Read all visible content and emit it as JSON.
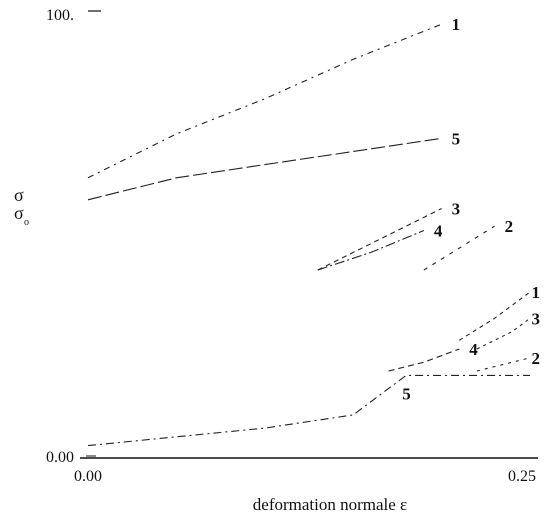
{
  "chart_data": {
    "type": "line",
    "title": "",
    "xlabel": "deformation normale ε",
    "ylabel_top": "σ",
    "ylabel_bottom": "σ",
    "ylabel_subscript": "o",
    "xlim": [
      0,
      0.25
    ],
    "ylim": [
      0,
      100
    ],
    "x_ticks": [
      {
        "value": 0,
        "label": "0.00"
      },
      {
        "value": 0.25,
        "label": "0.25"
      }
    ],
    "y_ticks": [
      {
        "value": 0,
        "label": "0.00"
      },
      {
        "value": 100,
        "label": "100."
      }
    ],
    "grid": false,
    "series": [
      {
        "name": "1",
        "x": [
          0.0,
          0.05,
          0.1,
          0.15,
          0.2
        ],
        "y": [
          62,
          72,
          80,
          89,
          97
        ]
      },
      {
        "name": "5",
        "x": [
          0.0,
          0.05,
          0.1,
          0.15,
          0.2
        ],
        "y": [
          57,
          62,
          65,
          68,
          71
        ]
      },
      {
        "name": "3",
        "x": [
          0.13,
          0.16,
          0.2
        ],
        "y": [
          41,
          47,
          55
        ]
      },
      {
        "name": "4",
        "x": [
          0.13,
          0.16,
          0.19
        ],
        "y": [
          41,
          45,
          50
        ]
      },
      {
        "name": "2",
        "x": [
          0.19,
          0.21,
          0.23
        ],
        "y": [
          41,
          46,
          51
        ]
      },
      {
        "name": "1",
        "x": [
          0.21,
          0.23,
          0.25
        ],
        "y": [
          25,
          30,
          36
        ]
      },
      {
        "name": "3",
        "x": [
          0.22,
          0.24,
          0.25
        ],
        "y": [
          23,
          27,
          30
        ]
      },
      {
        "name": "4",
        "x": [
          0.17,
          0.19,
          0.21
        ],
        "y": [
          18,
          20,
          23
        ]
      },
      {
        "name": "2",
        "x": [
          0.22,
          0.23,
          0.25
        ],
        "y": [
          18,
          19,
          21
        ]
      },
      {
        "name": "5",
        "x": [
          0.0,
          0.05,
          0.1,
          0.15,
          0.18,
          0.25
        ],
        "y": [
          1,
          3,
          5,
          8,
          17,
          17
        ]
      }
    ],
    "curve_labels": [
      "1",
      "5",
      "3",
      "4",
      "2",
      "1",
      "3",
      "4",
      "2",
      "5"
    ]
  }
}
